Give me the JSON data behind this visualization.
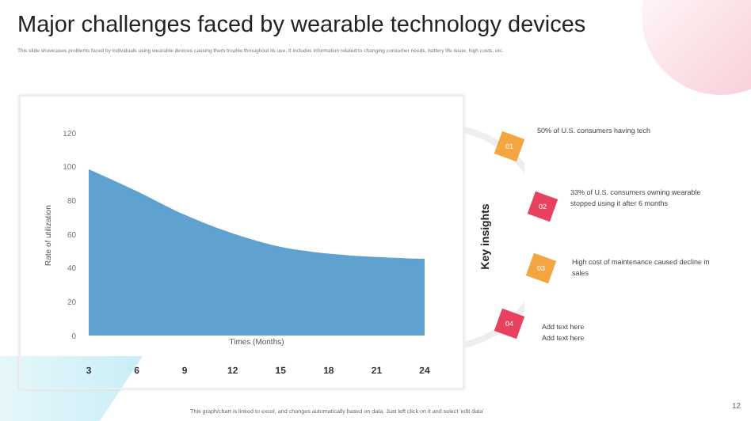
{
  "chart_data": {
    "type": "area",
    "title": "Major challenges faced by wearable technology devices",
    "subtitle": "This slide showcases problems faced by individuals using wearable devices causing them trouble throughout its use. It includes information related to changing consumer needs, battery life issue, high costs, etc.",
    "categories": [
      "3",
      "6",
      "9",
      "12",
      "15",
      "18",
      "21",
      "24"
    ],
    "values": [
      98,
      85,
      71,
      60,
      52,
      48,
      46,
      45
    ],
    "color": "#5fa2d0",
    "xlabel": "Times (Months)",
    "ylabel": "Rate of utilization",
    "ylim": [
      0,
      120
    ],
    "yticks": [
      0,
      20,
      40,
      60,
      80,
      100,
      120
    ],
    "grid": false,
    "legend": false,
    "annotations": [
      "Key insights",
      "01",
      "50% of U.S. consumers having tech",
      "02",
      "33% of U.S. consumers owning wearable stopped using it after 6 months",
      "03",
      "High cost of maintenance caused decline in sales",
      "04",
      "Add text here\nAdd text here",
      "This graph/chart is linked to excel, and changes automatically based on data. Just left click on it and select 'edit data'",
      "12"
    ]
  }
}
